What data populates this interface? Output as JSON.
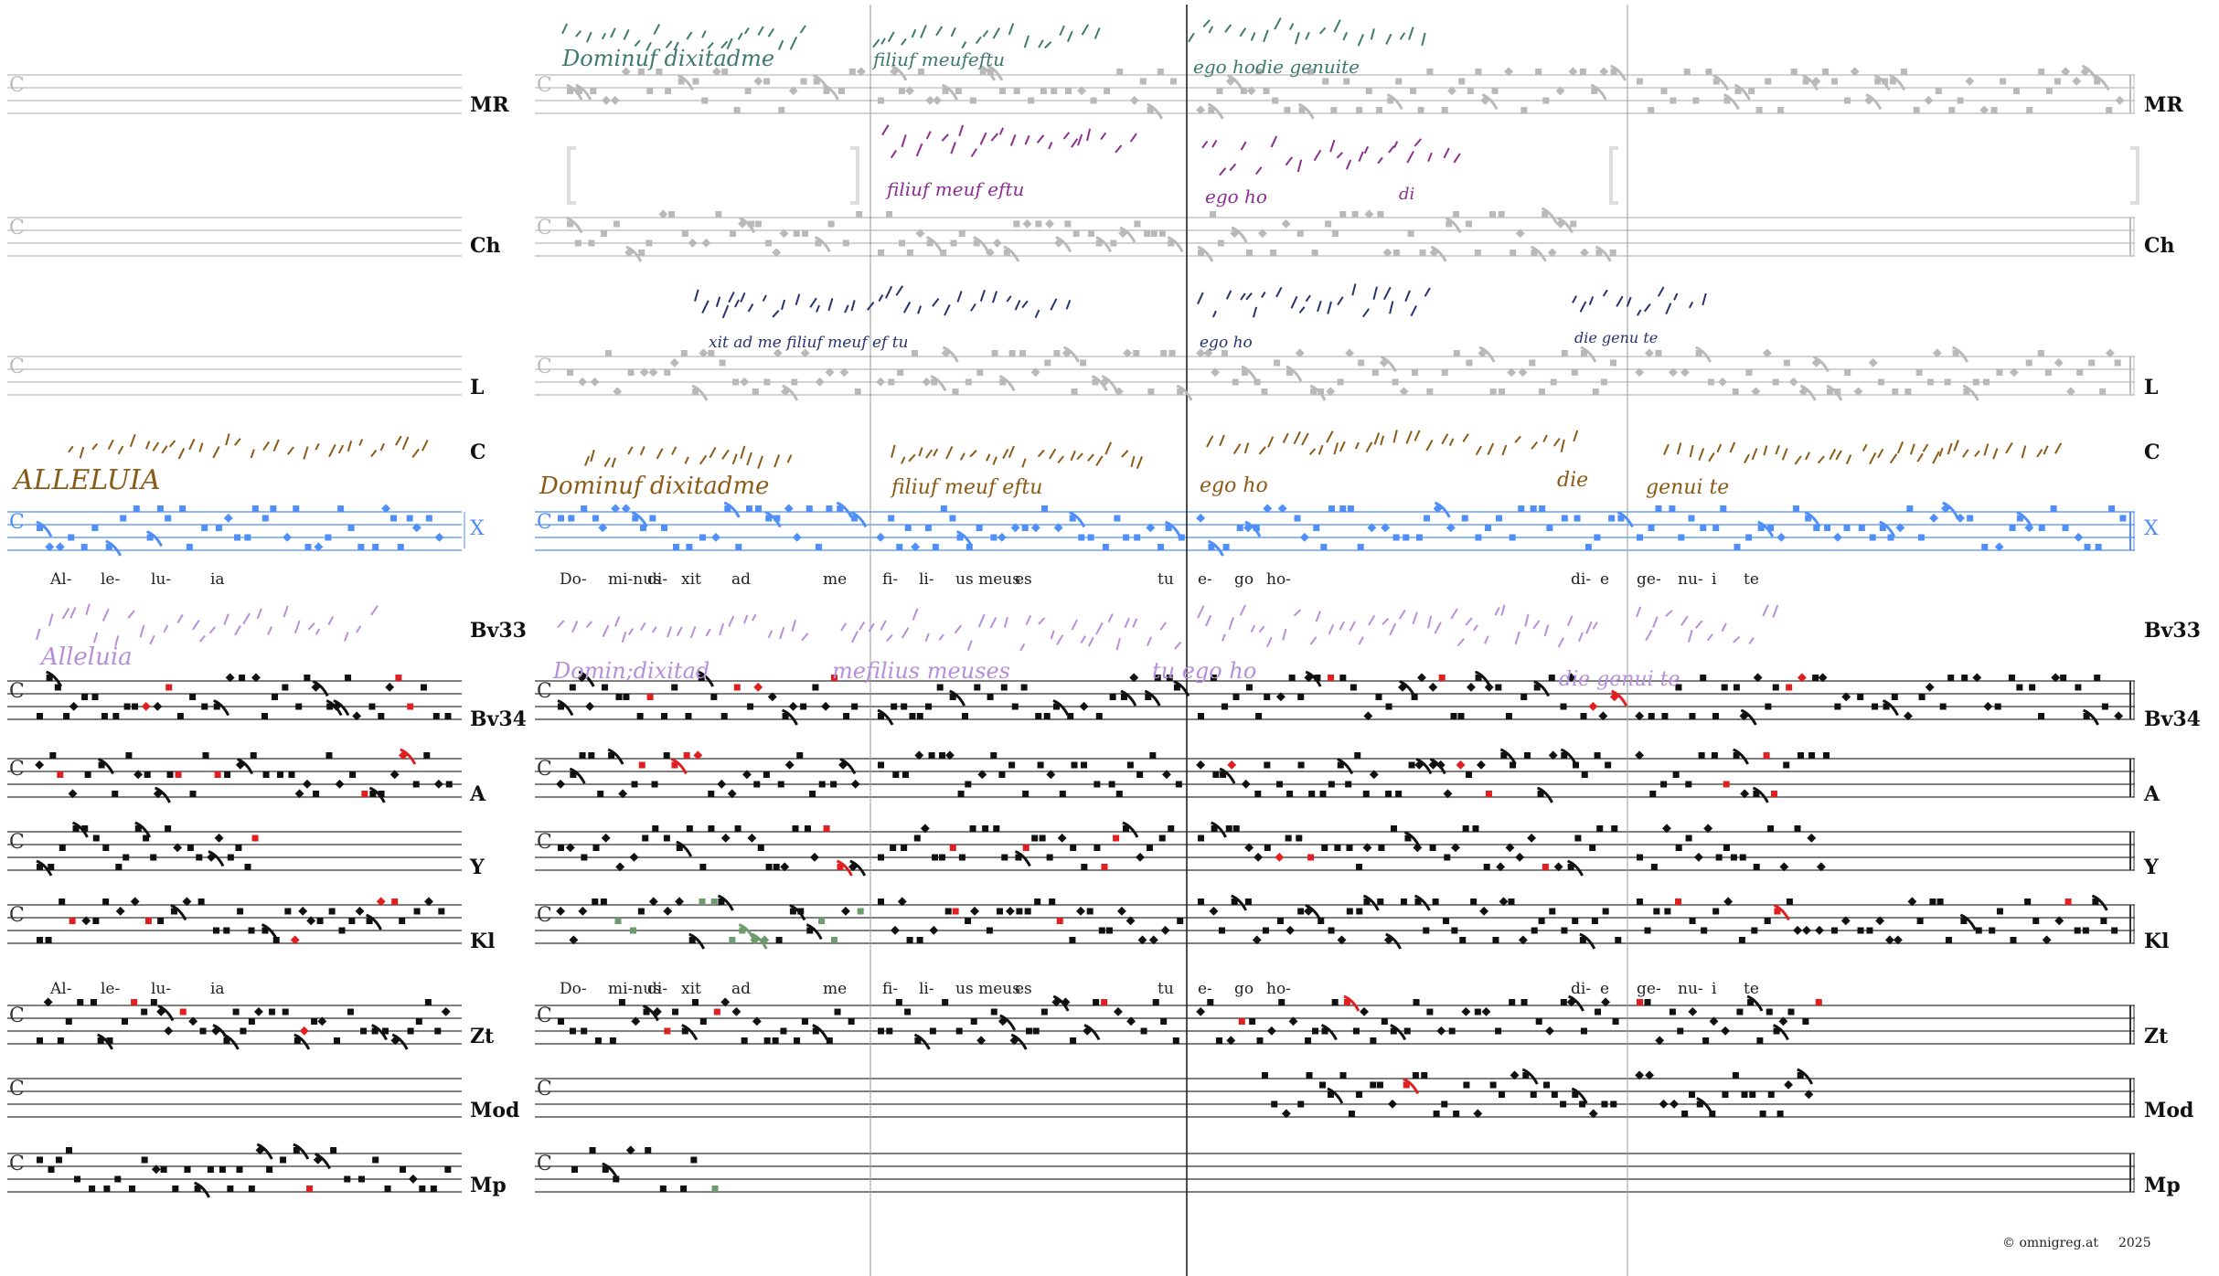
{
  "row_labels": {
    "right": [
      "MR",
      "Ch",
      "L",
      "C",
      "X",
      "Bv33",
      "Bv34",
      "A",
      "Y",
      "Kl",
      "Zt",
      "Mod",
      "Mp"
    ],
    "left": [
      "MR",
      "Ch",
      "L",
      "C",
      "X",
      "Bv33",
      "Bv34",
      "A",
      "Y",
      "Kl",
      "Zt",
      "Mod",
      "Mp"
    ]
  },
  "text_lines": {
    "line1": [
      "Al-",
      "le-",
      "lu-",
      "ia",
      "Do-",
      "mi-nus",
      "di-",
      "xit",
      "ad",
      "me",
      "fi-",
      "li-",
      "us meus",
      "es",
      "tu",
      "e-",
      "go",
      "ho-",
      "di-",
      "e",
      "ge-",
      "nu-",
      "i",
      "te"
    ],
    "line2": [
      "Al-",
      "le-",
      "lu-",
      "ia",
      "Do-",
      "mi-nus",
      "di-",
      "xit",
      "ad",
      "me",
      "fi-",
      "li-",
      "us meus",
      "es",
      "tu",
      "e-",
      "go",
      "ho-",
      "di-",
      "e",
      "ge-",
      "nu-",
      "i",
      "te"
    ]
  },
  "copyright": {
    "owner": "© omnigreg.at",
    "year": "2025"
  },
  "colors": {
    "MR_neume": "#3d7a6b",
    "Ch_neume": "#8b2f8f",
    "L_neume": "#27336e",
    "C_neume": "#8a5a17",
    "X_staff": "#4f8ff7",
    "Bv33_neume": "#b58fd9",
    "gray_note": "#b9b9b9",
    "red_note": "#e02020",
    "green_note": "#6c9b6c"
  }
}
